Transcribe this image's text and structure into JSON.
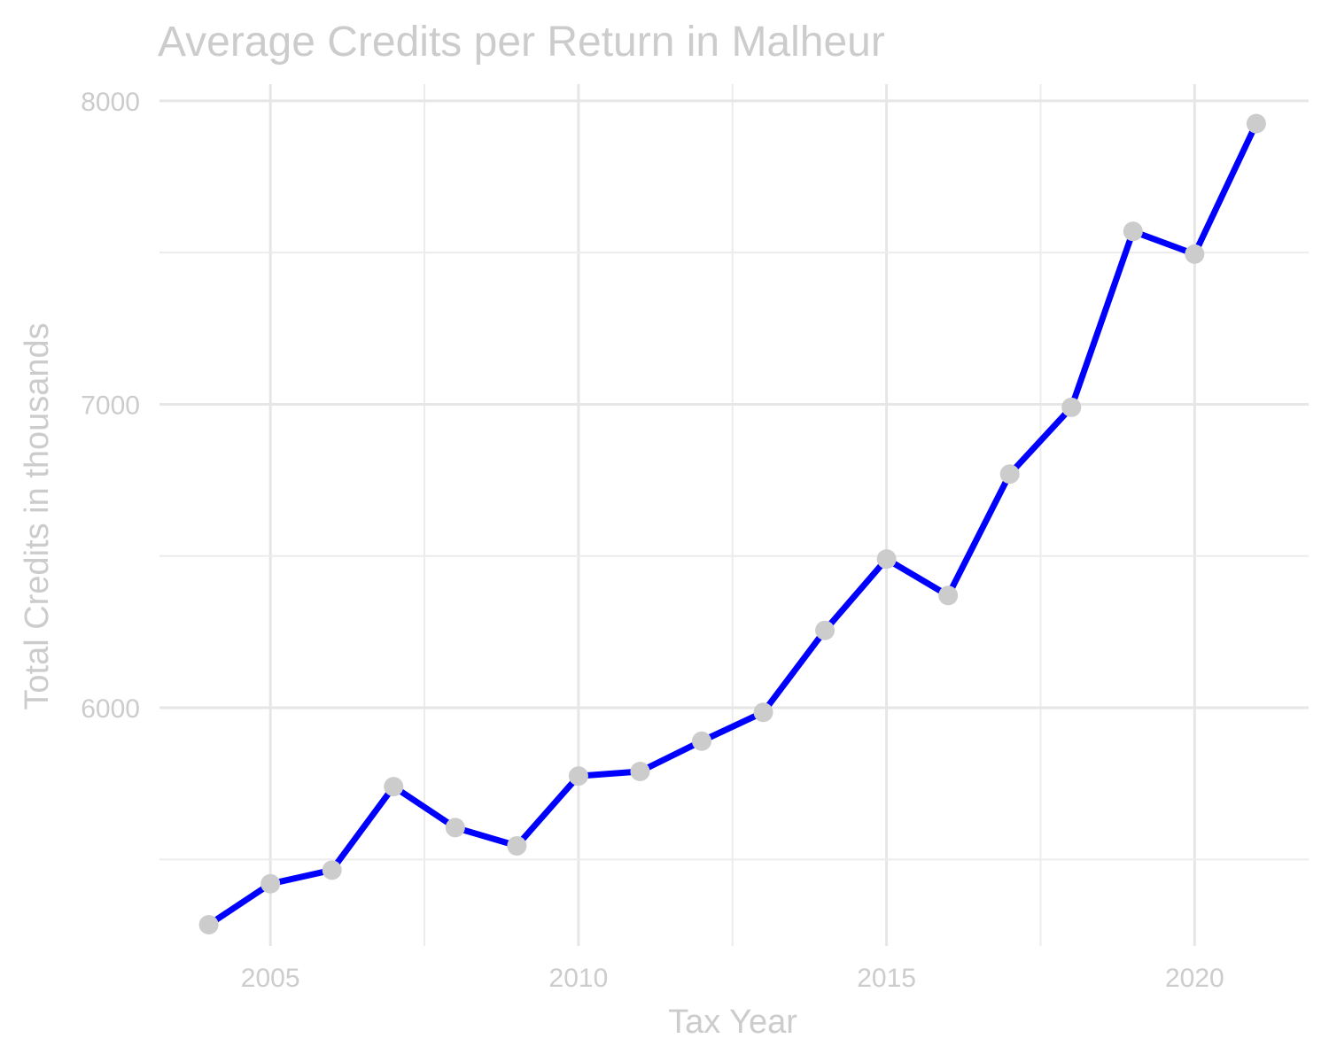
{
  "chart_data": {
    "type": "line",
    "title": "Average Credits per Return in Malheur",
    "xlabel": "Tax Year",
    "ylabel": "Total Credits in thousands",
    "x": [
      2004,
      2005,
      2006,
      2007,
      2008,
      2009,
      2010,
      2011,
      2012,
      2013,
      2014,
      2015,
      2016,
      2017,
      2018,
      2019,
      2020,
      2021
    ],
    "series": [
      {
        "values": [
          5285,
          5420,
          5465,
          5740,
          5605,
          5545,
          5775,
          5790,
          5890,
          5985,
          6255,
          6490,
          6370,
          6770,
          6990,
          7570,
          7495,
          7925
        ]
      }
    ],
    "xlim": [
      2003.2,
      2021.85
    ],
    "ylim": [
      5215,
      8055
    ],
    "x_ticks": [
      2005,
      2010,
      2015,
      2020
    ],
    "x_tick_labels": [
      "2005",
      "2010",
      "2015",
      "2020"
    ],
    "y_ticks": [
      6000,
      7000,
      8000
    ],
    "y_tick_labels": [
      "6000",
      "7000",
      "8000"
    ],
    "grid": true,
    "legend": "none",
    "colors": {
      "line": "#0000ff",
      "points": "#cccccc",
      "text": "#cccccc",
      "grid": "#e6e6e6"
    }
  }
}
